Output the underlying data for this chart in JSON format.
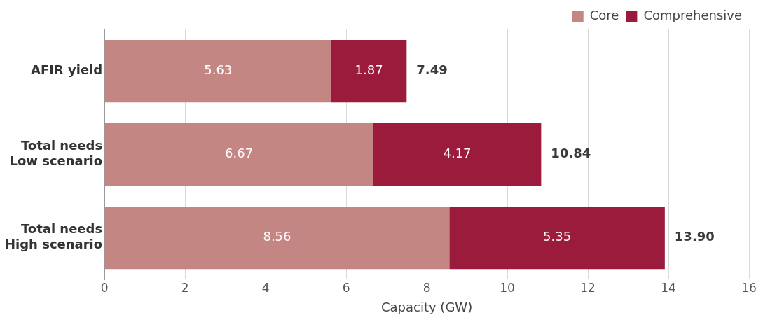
{
  "chart_data": {
    "type": "bar",
    "orientation": "horizontal",
    "stacked": true,
    "categories": [
      "AFIR yield",
      "Total needs\nLow scenario",
      "Total needs\nHigh scenario"
    ],
    "series": [
      {
        "name": "Core",
        "color": "#c48683",
        "values": [
          5.63,
          6.67,
          8.56
        ]
      },
      {
        "name": "Comprehensive",
        "color": "#9b1b3c",
        "values": [
          1.87,
          4.17,
          5.35
        ]
      }
    ],
    "totals": [
      "7.49",
      "10.84",
      "13.90"
    ],
    "data_labels": true,
    "xlabel": "Capacity (GW)",
    "xlim": [
      0,
      16
    ],
    "xticks": [
      0,
      2,
      4,
      6,
      8,
      10,
      12,
      14,
      16
    ],
    "grid": "x",
    "legend": "top right"
  }
}
